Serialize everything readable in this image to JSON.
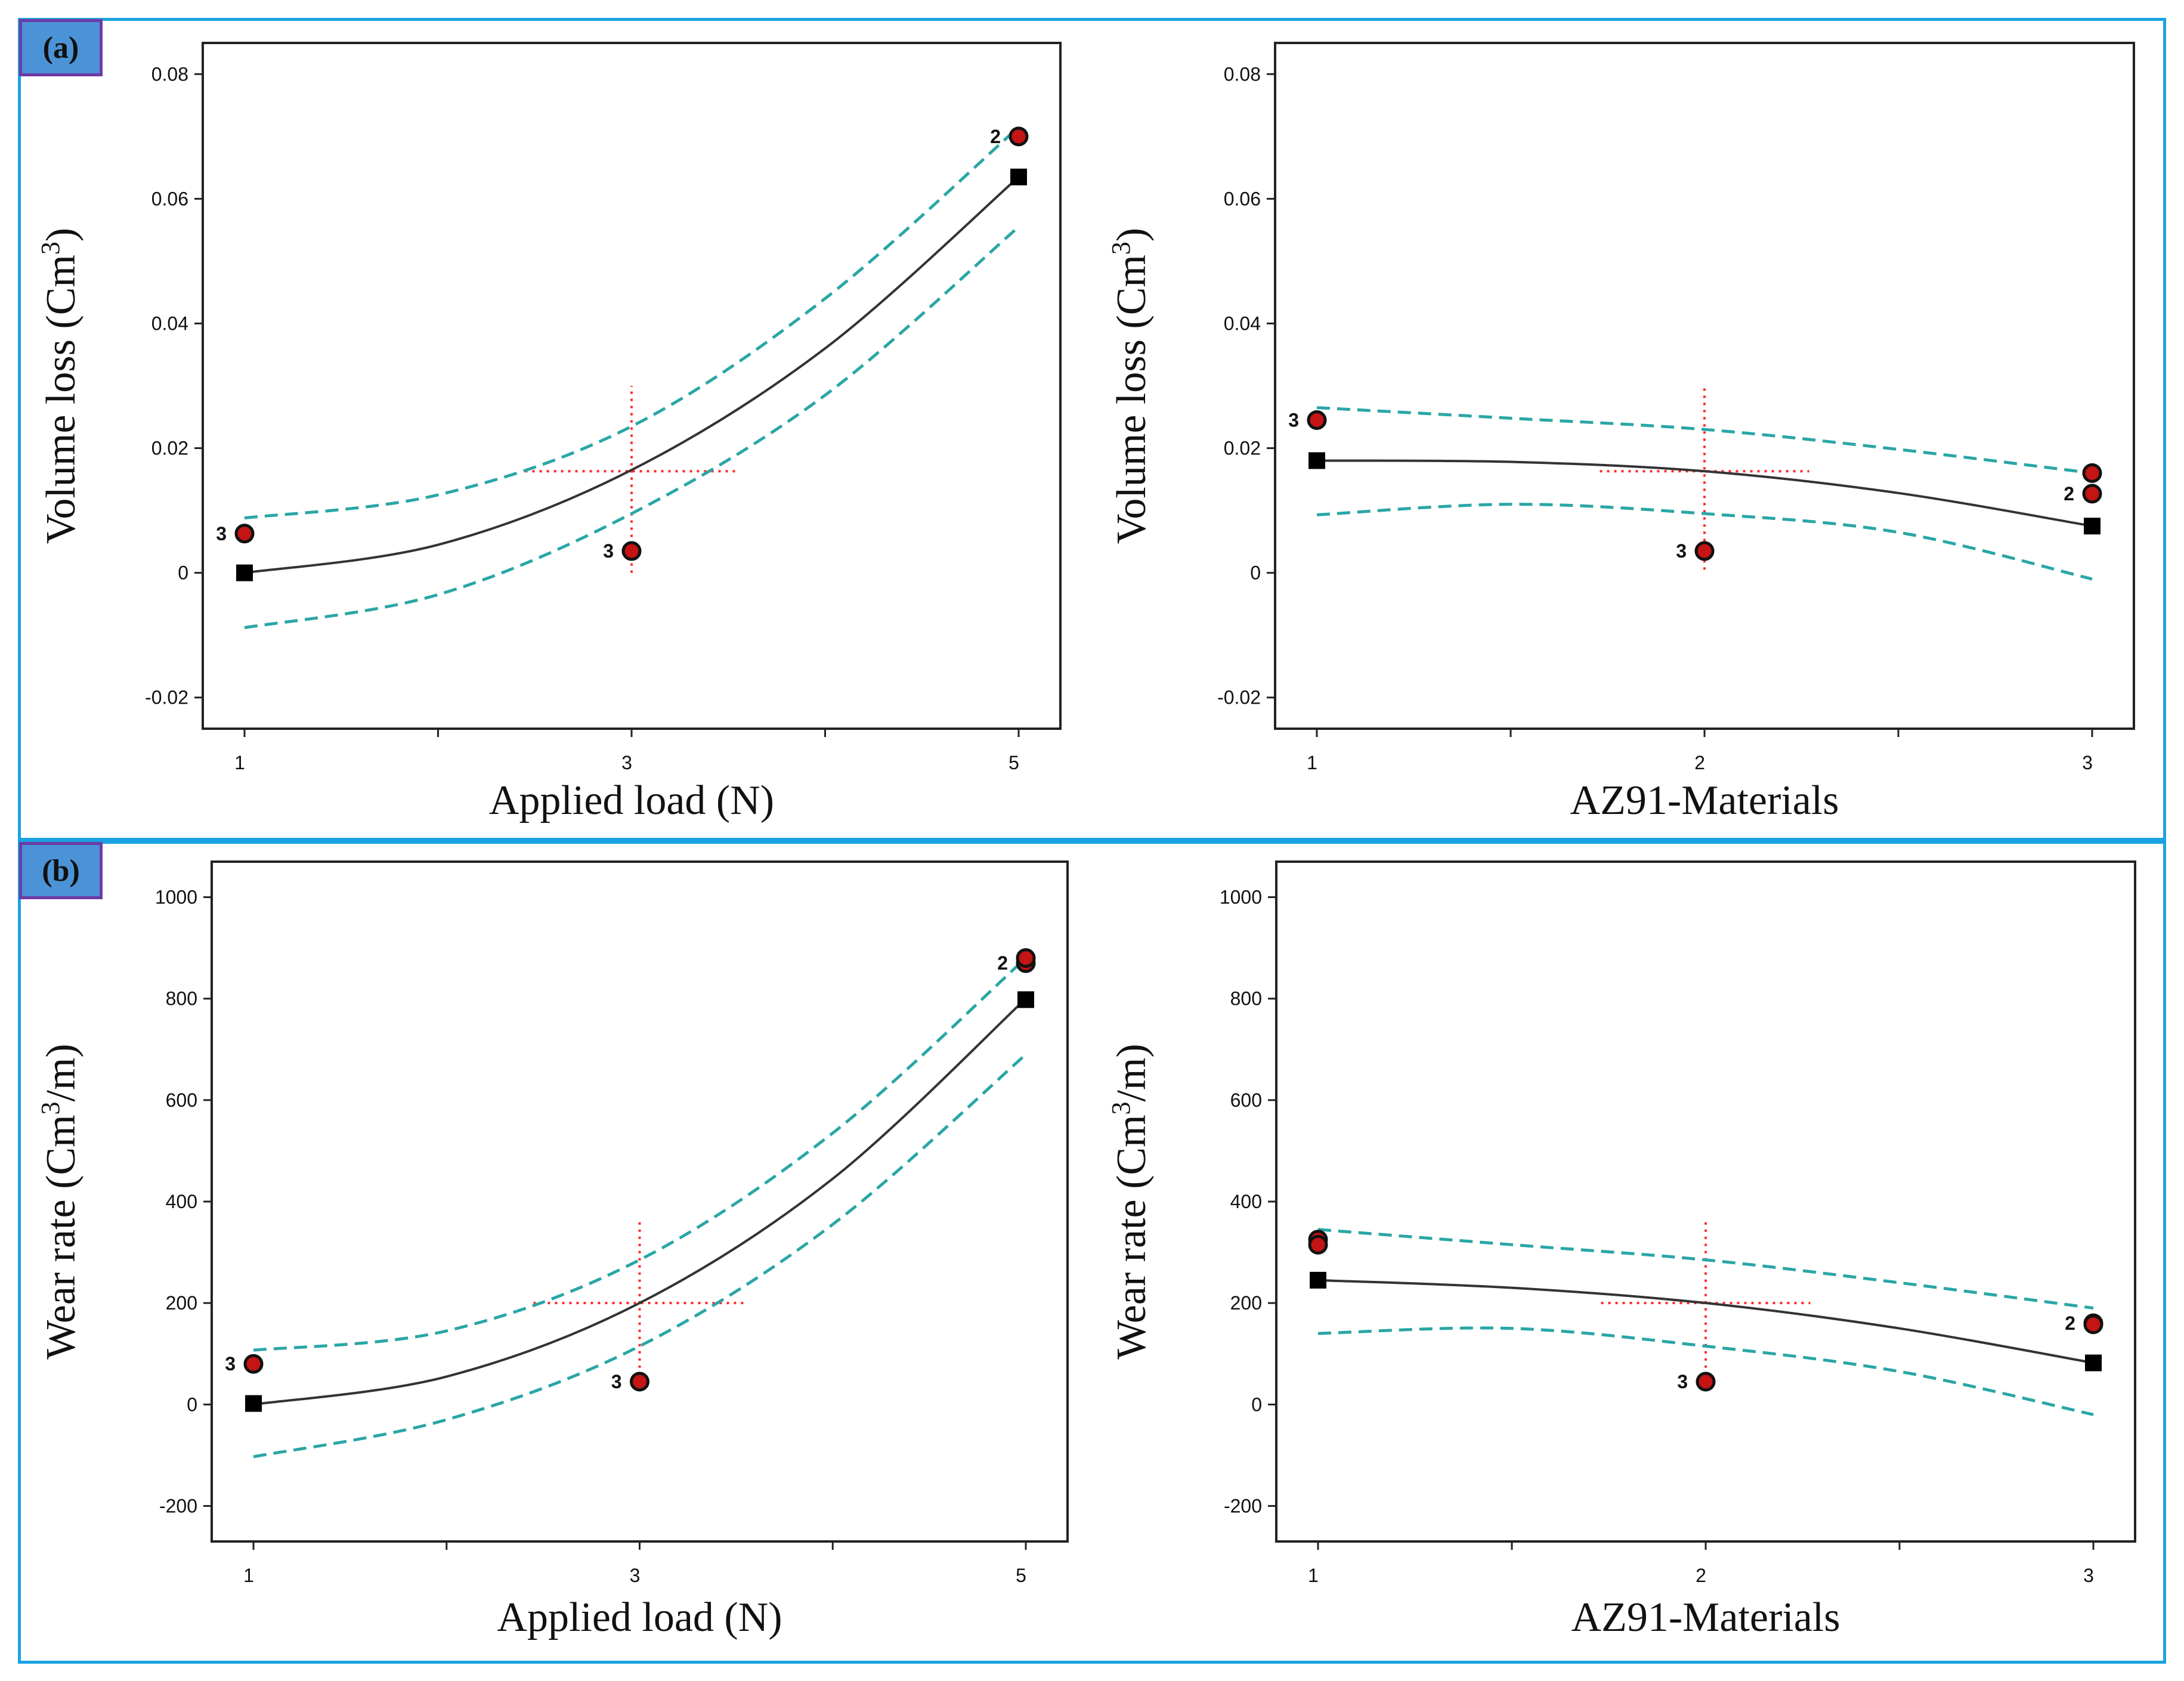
{
  "panels": [
    {
      "label": "(a)"
    },
    {
      "label": "(b)"
    }
  ],
  "colors": {
    "frame": "#1aa3e0",
    "tag_fill": "#4b93d6",
    "tag_border": "#6d3aa6",
    "fit_line": "#333333",
    "ci_band": "#2aa6a6",
    "point": "#c41414",
    "crosshair": "#ff2a2a",
    "design_marker": "#000000"
  },
  "chart_data": [
    {
      "type": "line",
      "panel": "(a)",
      "xlabel": "Applied load (N)",
      "ylabel_base": "Volume loss (Cm",
      "ylabel_sup": "3",
      "ylabel_tail": ")",
      "xlim": [
        1,
        5
      ],
      "ylim": [
        -0.025,
        0.085
      ],
      "xticks": [
        1,
        2,
        3,
        4,
        5
      ],
      "xtick_labels": [
        "1",
        "",
        "3",
        "",
        "5"
      ],
      "yticks": [
        -0.02,
        0,
        0.02,
        0.04,
        0.06,
        0.08
      ],
      "ytick_labels": [
        "-0.02",
        "0",
        "0.02",
        "0.04",
        "0.06",
        "0.08"
      ],
      "series": [
        {
          "name": "predicted",
          "x": [
            1,
            2,
            3,
            4,
            5
          ],
          "values": [
            0.0,
            0.0045,
            0.0165,
            0.036,
            0.0635
          ]
        },
        {
          "name": "upper CI",
          "x": [
            1,
            2,
            3,
            4,
            5
          ],
          "values": [
            0.0088,
            0.0125,
            0.0235,
            0.044,
            0.0715
          ]
        },
        {
          "name": "lower CI",
          "x": [
            1,
            2,
            3,
            4,
            5
          ],
          "values": [
            -0.0088,
            -0.0035,
            0.0095,
            0.0285,
            0.0555
          ]
        }
      ],
      "design_points": {
        "x": [
          1,
          5
        ],
        "values": [
          0.0,
          0.0635
        ]
      },
      "actual_points": {
        "x": [
          1,
          3,
          5
        ],
        "values": [
          0.0063,
          0.0035,
          0.07
        ],
        "replicates": [
          "3",
          "3",
          "2"
        ]
      },
      "crosshair": {
        "x": 3,
        "y": 0.0163,
        "x_span": [
          2.45,
          3.55
        ],
        "y_span": [
          -0.0,
          0.03
        ]
      }
    },
    {
      "type": "line",
      "panel": "(a)",
      "xlabel": "AZ91-Materials",
      "ylabel_base": "Volume loss (Cm",
      "ylabel_sup": "3",
      "ylabel_tail": ")",
      "xlim": [
        1,
        3
      ],
      "ylim": [
        -0.025,
        0.085
      ],
      "xticks": [
        1,
        1.5,
        2,
        2.5,
        3
      ],
      "xtick_labels": [
        "1",
        "",
        "2",
        "",
        "3"
      ],
      "yticks": [
        -0.02,
        0,
        0.02,
        0.04,
        0.06,
        0.08
      ],
      "ytick_labels": [
        "-0.02",
        "0",
        "0.02",
        "0.04",
        "0.06",
        "0.08"
      ],
      "series": [
        {
          "name": "predicted",
          "x": [
            1,
            1.5,
            2,
            2.5,
            3
          ],
          "values": [
            0.018,
            0.0178,
            0.0163,
            0.0128,
            0.0075
          ]
        },
        {
          "name": "upper CI",
          "x": [
            1,
            1.5,
            2,
            2.5,
            3
          ],
          "values": [
            0.0265,
            0.0248,
            0.023,
            0.0198,
            0.016
          ]
        },
        {
          "name": "lower CI",
          "x": [
            1,
            1.5,
            2,
            2.5,
            3
          ],
          "values": [
            0.0093,
            0.011,
            0.0095,
            0.0065,
            -0.001
          ]
        }
      ],
      "design_points": {
        "x": [
          1,
          3
        ],
        "values": [
          0.018,
          0.0075
        ]
      },
      "actual_points": {
        "x": [
          1,
          2,
          3,
          3
        ],
        "values": [
          0.0245,
          0.0035,
          0.016,
          0.0127
        ],
        "replicates": [
          "3",
          "3",
          "",
          "2"
        ]
      },
      "crosshair": {
        "x": 2,
        "y": 0.0163,
        "x_span": [
          1.73,
          2.27
        ],
        "y_span": [
          0.0005,
          0.03
        ]
      }
    },
    {
      "type": "line",
      "panel": "(b)",
      "xlabel": "Applied load (N)",
      "ylabel_base": "Wear rate (Cm",
      "ylabel_sup": "3",
      "ylabel_tail": "/m)",
      "xlim": [
        1,
        5
      ],
      "ylim": [
        -270,
        1070
      ],
      "xticks": [
        1,
        2,
        3,
        4,
        5
      ],
      "xtick_labels": [
        "1",
        "",
        "3",
        "",
        "5"
      ],
      "yticks": [
        -200,
        0,
        200,
        400,
        600,
        800,
        1000
      ],
      "ytick_labels": [
        "-200",
        "0",
        "200",
        "400",
        "600",
        "800",
        "1000"
      ],
      "series": [
        {
          "name": "predicted",
          "x": [
            1,
            2,
            3,
            4,
            5
          ],
          "values": [
            0,
            55,
            200,
            445,
            800
          ]
        },
        {
          "name": "upper CI",
          "x": [
            1,
            2,
            3,
            4,
            5
          ],
          "values": [
            107,
            145,
            285,
            535,
            880
          ]
        },
        {
          "name": "lower CI",
          "x": [
            1,
            2,
            3,
            4,
            5
          ],
          "values": [
            -103,
            -30,
            115,
            355,
            690
          ]
        }
      ],
      "design_points": {
        "x": [
          1,
          5
        ],
        "values": [
          2,
          798
        ]
      },
      "actual_points": {
        "x": [
          1,
          3,
          5,
          5
        ],
        "values": [
          80,
          45,
          870,
          880
        ],
        "replicates": [
          "3",
          "3",
          "2",
          ""
        ]
      },
      "crosshair": {
        "x": 3,
        "y": 200,
        "x_span": [
          2.45,
          3.55
        ],
        "y_span": [
          30,
          365
        ]
      }
    },
    {
      "type": "line",
      "panel": "(b)",
      "xlabel": "AZ91-Materials",
      "ylabel_base": "Wear rate (Cm",
      "ylabel_sup": "3",
      "ylabel_tail": "/m)",
      "xlim": [
        1,
        3
      ],
      "ylim": [
        -270,
        1070
      ],
      "xticks": [
        1,
        1.5,
        2,
        2.5,
        3
      ],
      "xtick_labels": [
        "1",
        "",
        "2",
        "",
        "3"
      ],
      "yticks": [
        -200,
        0,
        200,
        400,
        600,
        800,
        1000
      ],
      "ytick_labels": [
        "-200",
        "0",
        "200",
        "400",
        "600",
        "800",
        "1000"
      ],
      "series": [
        {
          "name": "predicted",
          "x": [
            1,
            1.5,
            2,
            2.5,
            3
          ],
          "values": [
            245,
            230,
            200,
            150,
            82
          ]
        },
        {
          "name": "upper CI",
          "x": [
            1,
            1.5,
            2,
            2.5,
            3
          ],
          "values": [
            345,
            315,
            285,
            240,
            190
          ]
        },
        {
          "name": "lower CI",
          "x": [
            1,
            1.5,
            2,
            2.5,
            3
          ],
          "values": [
            140,
            150,
            115,
            65,
            -20
          ]
        }
      ],
      "design_points": {
        "x": [
          1,
          3
        ],
        "values": [
          245,
          82
        ]
      },
      "actual_points": {
        "x": [
          1,
          1,
          2,
          3,
          3
        ],
        "values": [
          325,
          315,
          45,
          160,
          158
        ],
        "replicates": [
          "",
          "",
          "3",
          "2",
          ""
        ]
      },
      "crosshair": {
        "x": 2,
        "y": 200,
        "x_span": [
          1.73,
          2.27
        ],
        "y_span": [
          30,
          365
        ]
      }
    }
  ]
}
